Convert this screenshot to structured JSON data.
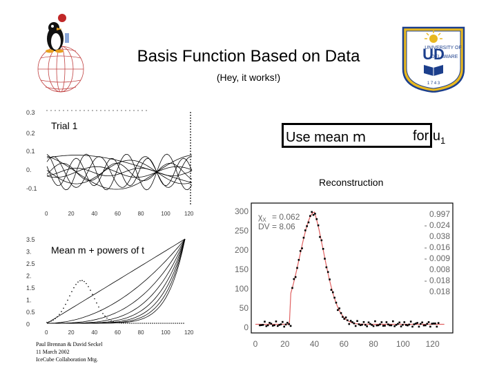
{
  "title": "Basis Function Based on Data",
  "subtitle": "(Hey, it works!)",
  "use_mean": {
    "text": "Use mean",
    "mu": "m",
    "for_text": "for u",
    "subscript": "1"
  },
  "reconstruction_label": "Reconstruction",
  "footer": [
    "Paul Brennan & David Seckel",
    "11 March 2002",
    "IceCube Collaboration Mtg."
  ],
  "trial_plot": {
    "label": "Trial 1",
    "y_ticks": [
      "0.3",
      "0.2",
      "0.1",
      "0.",
      "-0.1"
    ],
    "x_ticks": [
      "0",
      "20",
      "40",
      "60",
      "80",
      "100",
      "120"
    ]
  },
  "mean_plot": {
    "label_prefix": "Mean",
    "label_mu": "m",
    "label_suffix": "+ powers of t",
    "y_ticks": [
      "3.5",
      "3.",
      "2.5",
      "2.",
      "1.5",
      "1.",
      "0.5",
      "0"
    ],
    "x_ticks": [
      "0",
      "20",
      "40",
      "60",
      "80",
      "100",
      "120"
    ]
  },
  "recon_plot": {
    "y_ticks": [
      "300",
      "250",
      "200",
      "150",
      "100",
      "50",
      "0"
    ],
    "x_ticks": [
      "0",
      "20",
      "40",
      "60",
      "80",
      "100",
      "120"
    ],
    "chi_label": "χ",
    "chi_sub": "X",
    "chi_value": "= 0.062",
    "dv_label": "DV",
    "dv_value": "= 8.06",
    "coefficients": [
      "0.997",
      "- 0.024",
      "0.038",
      "- 0.016",
      "- 0.009",
      "0.008",
      "- 0.018",
      "0.018"
    ]
  },
  "colors": {
    "fit_line": "#e06060",
    "data_points": "#000000",
    "logo_blue": "#1c3f8c",
    "logo_gold": "#e8b820"
  },
  "logos": {
    "left": "penguin-globe-logo",
    "right": "university-of-delaware-seal"
  }
}
